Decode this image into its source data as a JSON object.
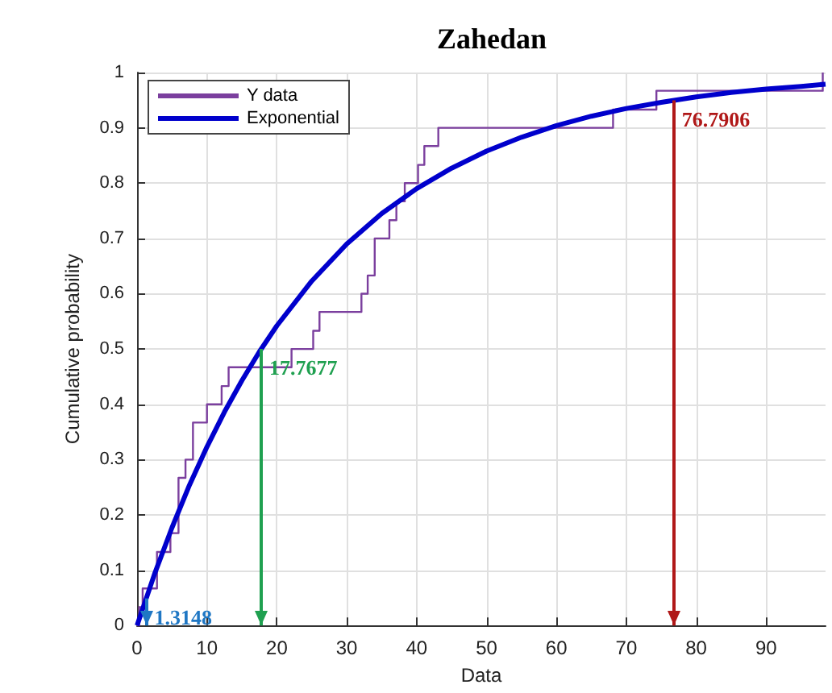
{
  "chart_data": {
    "type": "line",
    "title": "Zahedan",
    "xlabel": "Data",
    "ylabel": "Cumulative probability",
    "series": [
      {
        "name": "Y data",
        "type": "step",
        "color": "#7b3f9e",
        "x": [
          0,
          0.3,
          0.8,
          2.85,
          4.77,
          5.93,
          6.93,
          8.0,
          10.0,
          12.1,
          13.1,
          22.1,
          25.2,
          26.1,
          32.1,
          33.0,
          34.0,
          36.1,
          37.1,
          38.3,
          40.2,
          41.1,
          43.1,
          68.1,
          74.3,
          98.1
        ],
        "values": [
          0,
          0.033,
          0.067,
          0.133,
          0.167,
          0.267,
          0.3,
          0.367,
          0.4,
          0.433,
          0.467,
          0.5,
          0.533,
          0.567,
          0.6,
          0.633,
          0.7,
          0.733,
          0.767,
          0.8,
          0.833,
          0.867,
          0.9,
          0.933,
          0.967,
          1.0
        ]
      },
      {
        "name": "Exponential",
        "type": "line",
        "color": "#0000cc",
        "x": [
          0,
          2.5,
          5,
          7.5,
          10,
          12.5,
          15,
          17.5,
          20,
          25,
          30,
          35,
          40,
          45,
          50,
          55,
          60,
          65,
          70,
          75,
          80,
          85,
          90,
          95,
          98.5
        ],
        "values": [
          0,
          0.093,
          0.177,
          0.254,
          0.323,
          0.386,
          0.443,
          0.495,
          0.542,
          0.623,
          0.69,
          0.745,
          0.79,
          0.827,
          0.858,
          0.883,
          0.904,
          0.921,
          0.935,
          0.946,
          0.956,
          0.964,
          0.97,
          0.975,
          0.979
        ]
      }
    ],
    "ref_lines": [
      {
        "axis": "x",
        "value": 1.3148,
        "label": "1.3148",
        "color": "#1f77c4"
      },
      {
        "axis": "x",
        "value": 17.7677,
        "label": "17.7677",
        "color": "#1fa050"
      },
      {
        "axis": "x",
        "value": 76.7906,
        "label": "76.7906",
        "color": "#b01818"
      }
    ],
    "xlim": [
      0,
      98.5
    ],
    "xticks": [
      0,
      10,
      20,
      30,
      40,
      50,
      60,
      70,
      80,
      90
    ],
    "ylim": [
      0,
      1
    ],
    "yticks": [
      0,
      0.1,
      0.2,
      0.3,
      0.4,
      0.5,
      0.6,
      0.7,
      0.8,
      0.9,
      1
    ],
    "grid": true,
    "legend": "top left",
    "marker": "none",
    "line_style": "solid"
  }
}
